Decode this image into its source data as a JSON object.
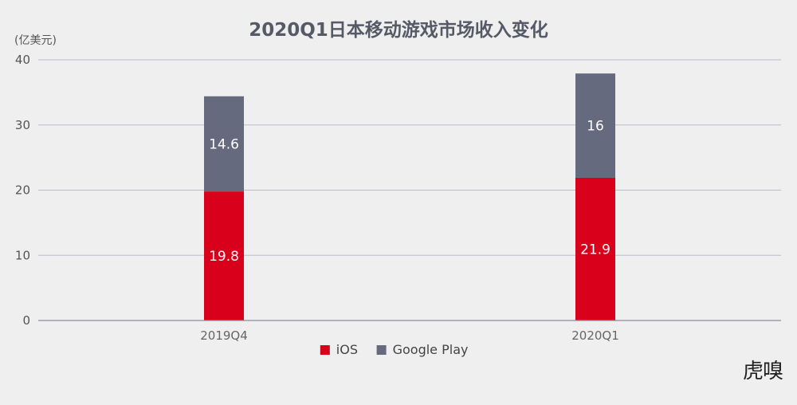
{
  "chart_data": {
    "type": "bar",
    "stacked": true,
    "title": "2020Q1日本移动游戏市场收入变化",
    "ylabel": "(亿美元)",
    "xlabel": "",
    "ylim": [
      0,
      40
    ],
    "yticks": [
      0,
      10,
      20,
      30,
      40
    ],
    "categories": [
      "2019Q4",
      "2020Q1"
    ],
    "series": [
      {
        "name": "iOS",
        "values": [
          19.8,
          21.9
        ],
        "color": "#d9001b"
      },
      {
        "name": "Google Play",
        "values": [
          14.6,
          16
        ],
        "color": "#656a7e"
      }
    ],
    "grid": true,
    "legend_position": "bottom"
  },
  "watermark": "虎嗅"
}
